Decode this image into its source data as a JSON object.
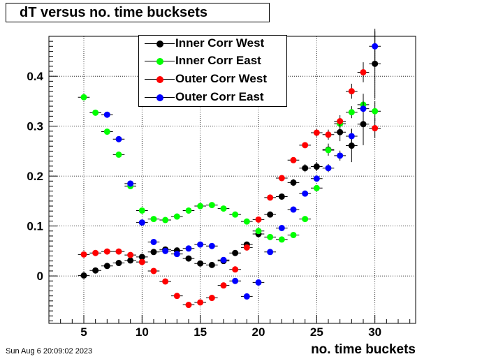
{
  "title": "dT versus no. time bucksets",
  "footer": "Sun Aug  6 20:09:02 2023",
  "chart_data": {
    "type": "scatter",
    "title": "dT versus no. time bucksets",
    "xlabel": "no. time buckets",
    "ylabel": "",
    "xlim": [
      2,
      33.5
    ],
    "ylim": [
      -0.095,
      0.48
    ],
    "grid": true,
    "legend_position": "top-center",
    "x_ticks": [
      5,
      10,
      15,
      20,
      25,
      30
    ],
    "x_tick_labels": [
      "5",
      "10",
      "15",
      "20",
      "25",
      "30"
    ],
    "y_ticks": [
      0,
      0.1,
      0.2,
      0.3,
      0.4
    ],
    "y_tick_labels": [
      "0",
      "0.1",
      "0.2",
      "0.3",
      "0.4"
    ],
    "series": [
      {
        "name": "Inner Corr West",
        "color": "#000000",
        "x": [
          5,
          6,
          7,
          8,
          9,
          10,
          11,
          12,
          13,
          14,
          15,
          16,
          17,
          18,
          19,
          20,
          21,
          22,
          23,
          24,
          25,
          26,
          27,
          28,
          29,
          30
        ],
        "y": [
          0.001,
          0.011,
          0.02,
          0.026,
          0.031,
          0.038,
          0.048,
          0.053,
          0.051,
          0.035,
          0.025,
          0.022,
          0.03,
          0.046,
          0.063,
          0.084,
          0.123,
          0.159,
          0.187,
          0.216,
          0.219,
          0.253,
          0.288,
          0.261,
          0.304,
          0.425
        ],
        "yerr": [
          0.003,
          0.003,
          0.003,
          0.003,
          0.003,
          0.004,
          0.004,
          0.004,
          0.004,
          0.004,
          0.004,
          0.004,
          0.004,
          0.004,
          0.004,
          0.005,
          0.005,
          0.006,
          0.007,
          0.008,
          0.009,
          0.012,
          0.018,
          0.033,
          0.042,
          0.07
        ]
      },
      {
        "name": "Inner Corr East",
        "color": "#00ff00",
        "x": [
          5,
          6,
          7,
          8,
          9,
          10,
          11,
          12,
          13,
          14,
          15,
          16,
          17,
          18,
          19,
          20,
          21,
          22,
          23,
          24,
          25,
          26,
          27,
          28,
          29,
          30
        ],
        "y": [
          0.358,
          0.327,
          0.289,
          0.243,
          0.18,
          0.131,
          0.114,
          0.112,
          0.119,
          0.131,
          0.14,
          0.142,
          0.135,
          0.123,
          0.109,
          0.09,
          0.078,
          0.073,
          0.082,
          0.114,
          0.176,
          0.252,
          0.305,
          0.328,
          0.343,
          0.33
        ],
        "yerr": [
          0.005,
          0.004,
          0.004,
          0.004,
          0.004,
          0.004,
          0.004,
          0.004,
          0.004,
          0.004,
          0.004,
          0.004,
          0.004,
          0.004,
          0.004,
          0.004,
          0.004,
          0.004,
          0.004,
          0.004,
          0.006,
          0.008,
          0.01,
          0.012,
          0.015,
          0.02
        ]
      },
      {
        "name": "Outer Corr West",
        "color": "#ff0000",
        "x": [
          5,
          6,
          7,
          8,
          9,
          10,
          11,
          12,
          13,
          14,
          15,
          16,
          17,
          18,
          19,
          20,
          21,
          22,
          23,
          24,
          25,
          26,
          27,
          28,
          29,
          30
        ],
        "y": [
          0.043,
          0.046,
          0.049,
          0.049,
          0.042,
          0.028,
          0.01,
          -0.011,
          -0.04,
          -0.058,
          -0.053,
          -0.044,
          -0.019,
          0.013,
          0.057,
          0.113,
          0.157,
          0.196,
          0.232,
          0.262,
          0.287,
          0.283,
          0.31,
          0.37,
          0.408,
          0.296
        ],
        "yerr": [
          0.003,
          0.003,
          0.003,
          0.003,
          0.003,
          0.003,
          0.003,
          0.003,
          0.003,
          0.003,
          0.003,
          0.003,
          0.003,
          0.003,
          0.004,
          0.004,
          0.004,
          0.005,
          0.005,
          0.006,
          0.008,
          0.01,
          0.012,
          0.015,
          0.02,
          0.02
        ]
      },
      {
        "name": "Outer Corr East",
        "color": "#0000ff",
        "x": [
          7,
          8,
          9,
          10,
          11,
          12,
          13,
          14,
          15,
          16,
          17,
          18,
          19,
          20,
          21,
          22,
          23,
          24,
          25,
          26,
          27,
          28,
          29,
          30
        ],
        "y": [
          0.323,
          0.274,
          0.185,
          0.107,
          0.068,
          0.05,
          0.044,
          0.055,
          0.063,
          0.06,
          0.032,
          -0.01,
          -0.041,
          -0.013,
          0.048,
          0.096,
          0.133,
          0.165,
          0.195,
          0.216,
          0.241,
          0.28,
          0.335,
          0.46
        ],
        "yerr": [
          0.004,
          0.004,
          0.004,
          0.004,
          0.004,
          0.004,
          0.004,
          0.004,
          0.004,
          0.004,
          0.004,
          0.004,
          0.004,
          0.004,
          0.004,
          0.004,
          0.005,
          0.005,
          0.006,
          0.008,
          0.01,
          0.015,
          0.03,
          0.03
        ]
      }
    ]
  }
}
